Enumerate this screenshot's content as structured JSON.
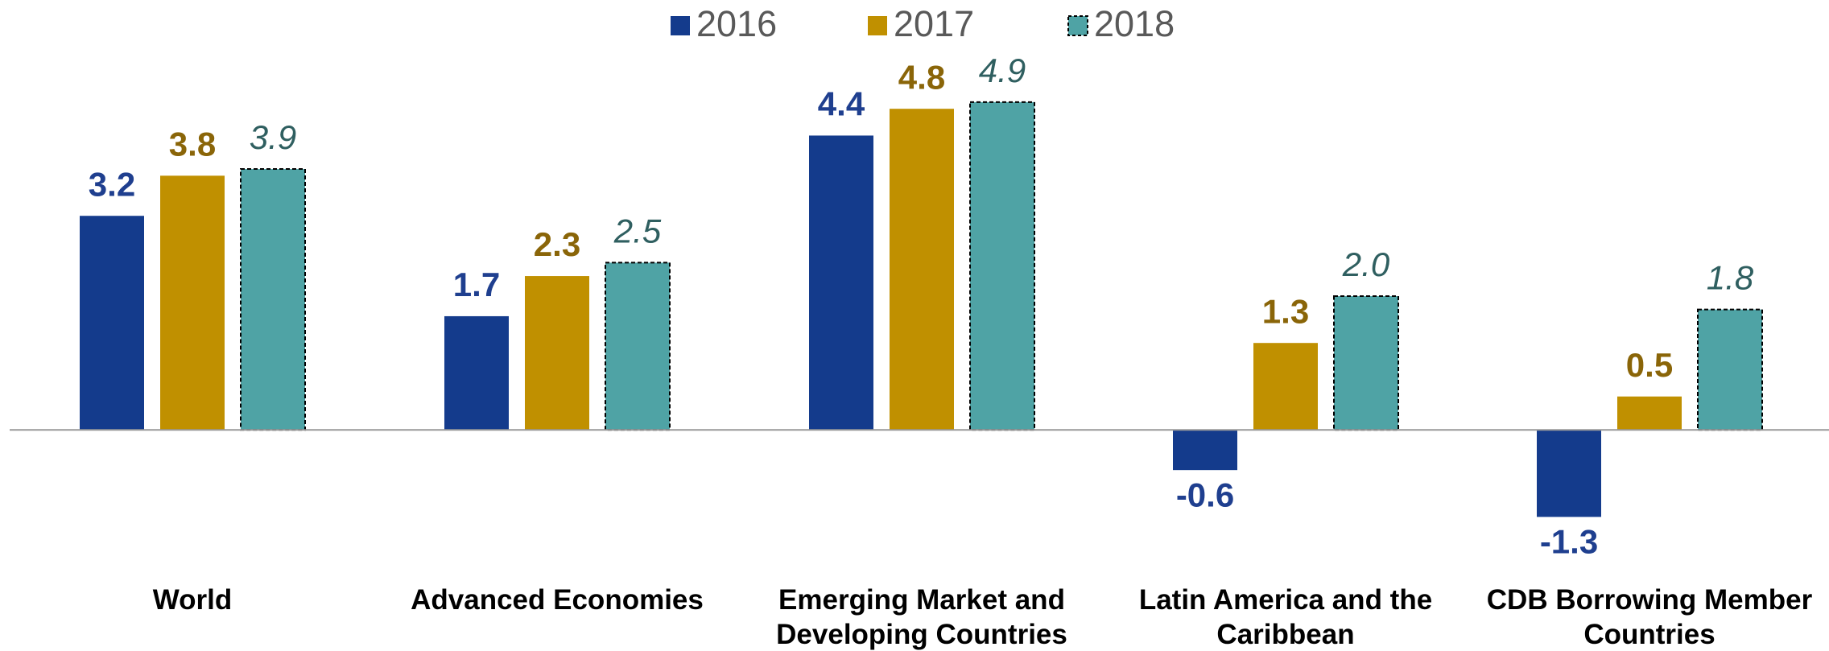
{
  "chart_data": {
    "type": "bar",
    "categories": [
      "World",
      "Advanced Economies",
      "Emerging Market and Developing Countries",
      "Latin America and the Caribbean",
      "CDB Borrowing Member Countries"
    ],
    "series": [
      {
        "name": "2016",
        "color": "#143b8c",
        "label_color": "#1f3f8f",
        "label_style": "bold",
        "values": [
          3.2,
          1.7,
          4.4,
          -0.6,
          -1.3
        ]
      },
      {
        "name": "2017",
        "color": "#c09000",
        "label_color": "#8a6508",
        "label_style": "bold",
        "values": [
          3.8,
          2.3,
          4.8,
          1.3,
          0.5
        ]
      },
      {
        "name": "2018",
        "color": "#4fa3a5",
        "label_color": "#2f5f60",
        "label_style": "italic",
        "linestyle": "dashed",
        "values": [
          3.9,
          2.5,
          4.9,
          2.0,
          1.8
        ],
        "value_labels": [
          "3.9",
          "2.5",
          "4.9",
          "2.0",
          "1.8"
        ]
      }
    ],
    "ylim": [
      -1.5,
      5.5
    ],
    "legend": "top"
  }
}
